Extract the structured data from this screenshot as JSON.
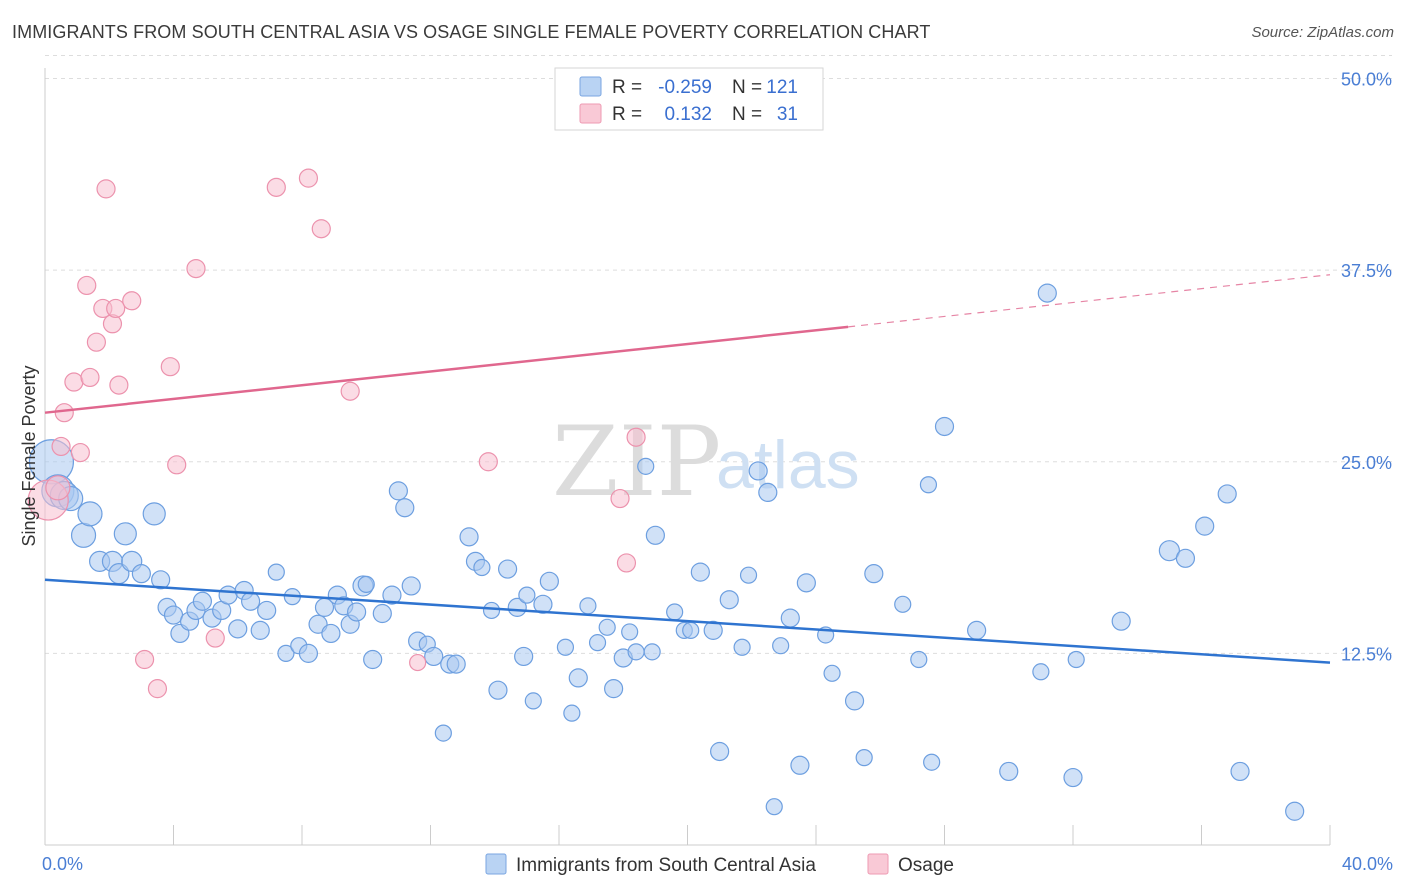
{
  "title": "IMMIGRANTS FROM SOUTH CENTRAL ASIA VS OSAGE SINGLE FEMALE POVERTY CORRELATION CHART",
  "source": "Source: ZipAtlas.com",
  "watermark": {
    "zip": "ZIP",
    "atlas": "atlas"
  },
  "colors": {
    "blue_fill": "#a9c8f0",
    "blue_stroke": "#6d9fe0",
    "blue_line": "#2f74d0",
    "pink_fill": "#f8bfcf",
    "pink_stroke": "#ec92ad",
    "pink_line": "#e0678e",
    "grid": "#dddddd",
    "axis_label": "#4a7ed4"
  },
  "legend": {
    "rows": [
      {
        "r_label": "R =",
        "r_value": "-0.259",
        "n_label": "N =",
        "n_value": "121"
      },
      {
        "r_label": "R =",
        "r_value": "0.132",
        "n_label": "N =",
        "n_value": "31"
      }
    ]
  },
  "bottom_legend": {
    "items": [
      {
        "label": "Immigrants from South Central Asia"
      },
      {
        "label": "Osage"
      }
    ]
  },
  "chart_data": {
    "type": "scatter",
    "title": "IMMIGRANTS FROM SOUTH CENTRAL ASIA VS OSAGE SINGLE FEMALE POVERTY CORRELATION CHART",
    "xlabel": "",
    "ylabel": "Single Female Poverty",
    "xlim": [
      0,
      40
    ],
    "ylim": [
      0,
      51.5
    ],
    "x_tick_labels": [
      {
        "value": 0,
        "label": "0.0%"
      },
      {
        "value": 40,
        "label": "40.0%"
      }
    ],
    "x_minor_ticks": [
      4,
      8,
      12,
      16,
      20,
      24,
      28,
      32,
      36
    ],
    "y_ticks": [
      {
        "value": 12.5,
        "label": "12.5%"
      },
      {
        "value": 25.0,
        "label": "25.0%"
      },
      {
        "value": 37.5,
        "label": "37.5%"
      },
      {
        "value": 50.0,
        "label": "50.0%"
      }
    ],
    "grid": true,
    "legend_position": "top-center",
    "series": [
      {
        "name": "Immigrants from South Central Asia",
        "color": "blue",
        "R": -0.259,
        "N": 121,
        "trend": {
          "x0": 0,
          "y0": 17.3,
          "x1": 40,
          "y1": 11.9
        },
        "points": [
          [
            0.2,
            25.0,
            22
          ],
          [
            0.4,
            23.1,
            16
          ],
          [
            0.6,
            22.8,
            14
          ],
          [
            0.8,
            22.6,
            12
          ],
          [
            1.2,
            20.2,
            12
          ],
          [
            1.4,
            21.6,
            12
          ],
          [
            1.7,
            18.5,
            10
          ],
          [
            2.1,
            18.5,
            10
          ],
          [
            2.3,
            17.7,
            10
          ],
          [
            2.5,
            20.3,
            11
          ],
          [
            2.7,
            18.5,
            10
          ],
          [
            3.0,
            17.7,
            9
          ],
          [
            3.4,
            21.6,
            11
          ],
          [
            3.6,
            17.3,
            9
          ],
          [
            3.8,
            15.5,
            9
          ],
          [
            4.0,
            15.0,
            9
          ],
          [
            4.2,
            13.8,
            9
          ],
          [
            4.5,
            14.6,
            9
          ],
          [
            4.7,
            15.3,
            9
          ],
          [
            4.9,
            15.9,
            9
          ],
          [
            5.2,
            14.8,
            9
          ],
          [
            5.5,
            15.3,
            9
          ],
          [
            5.7,
            16.3,
            9
          ],
          [
            6.0,
            14.1,
            9
          ],
          [
            6.2,
            16.6,
            9
          ],
          [
            6.4,
            15.9,
            9
          ],
          [
            6.7,
            14.0,
            9
          ],
          [
            6.9,
            15.3,
            9
          ],
          [
            7.2,
            17.8,
            8
          ],
          [
            7.5,
            12.5,
            8
          ],
          [
            7.7,
            16.2,
            8
          ],
          [
            7.9,
            13.0,
            8
          ],
          [
            8.2,
            12.5,
            9
          ],
          [
            8.5,
            14.4,
            9
          ],
          [
            8.7,
            15.5,
            9
          ],
          [
            8.9,
            13.8,
            9
          ],
          [
            9.1,
            16.3,
            9
          ],
          [
            9.3,
            15.6,
            9
          ],
          [
            9.5,
            14.4,
            9
          ],
          [
            9.7,
            15.2,
            9
          ],
          [
            9.9,
            16.9,
            10
          ],
          [
            10.0,
            17.0,
            8
          ],
          [
            10.2,
            12.1,
            9
          ],
          [
            10.5,
            15.1,
            9
          ],
          [
            10.8,
            16.3,
            9
          ],
          [
            11.0,
            23.1,
            9
          ],
          [
            11.2,
            22.0,
            9
          ],
          [
            11.4,
            16.9,
            9
          ],
          [
            11.6,
            13.3,
            9
          ],
          [
            11.9,
            13.1,
            8
          ],
          [
            12.1,
            12.3,
            9
          ],
          [
            12.4,
            7.3,
            8
          ],
          [
            12.6,
            11.8,
            9
          ],
          [
            12.8,
            11.8,
            9
          ],
          [
            13.2,
            20.1,
            9
          ],
          [
            13.4,
            18.5,
            9
          ],
          [
            13.6,
            18.1,
            8
          ],
          [
            13.9,
            15.3,
            8
          ],
          [
            14.1,
            10.1,
            9
          ],
          [
            14.4,
            18.0,
            9
          ],
          [
            14.7,
            15.5,
            9
          ],
          [
            14.9,
            12.3,
            9
          ],
          [
            15.2,
            9.4,
            8
          ],
          [
            15.5,
            15.7,
            9
          ],
          [
            15.0,
            16.3,
            8
          ],
          [
            15.7,
            17.2,
            9
          ],
          [
            16.2,
            12.9,
            8
          ],
          [
            16.4,
            8.6,
            8
          ],
          [
            16.6,
            10.9,
            9
          ],
          [
            16.9,
            15.6,
            8
          ],
          [
            17.2,
            13.2,
            8
          ],
          [
            17.5,
            14.2,
            8
          ],
          [
            17.7,
            10.2,
            9
          ],
          [
            18.0,
            12.2,
            9
          ],
          [
            18.2,
            13.9,
            8
          ],
          [
            18.4,
            12.6,
            8
          ],
          [
            18.7,
            24.7,
            8
          ],
          [
            19.0,
            20.2,
            9
          ],
          [
            18.9,
            12.6,
            8
          ],
          [
            19.6,
            15.2,
            8
          ],
          [
            19.9,
            14.0,
            8
          ],
          [
            20.1,
            14.0,
            8
          ],
          [
            20.4,
            17.8,
            9
          ],
          [
            20.8,
            14.0,
            9
          ],
          [
            21.0,
            6.1,
            9
          ],
          [
            21.3,
            16.0,
            9
          ],
          [
            21.7,
            12.9,
            8
          ],
          [
            21.9,
            17.6,
            8
          ],
          [
            22.2,
            24.4,
            9
          ],
          [
            22.5,
            23.0,
            9
          ],
          [
            22.7,
            2.5,
            8
          ],
          [
            22.9,
            13.0,
            8
          ],
          [
            23.2,
            14.8,
            9
          ],
          [
            23.5,
            5.2,
            9
          ],
          [
            23.7,
            17.1,
            9
          ],
          [
            24.3,
            13.7,
            8
          ],
          [
            24.5,
            11.2,
            8
          ],
          [
            25.2,
            9.4,
            9
          ],
          [
            25.5,
            5.7,
            8
          ],
          [
            25.8,
            17.7,
            9
          ],
          [
            26.7,
            15.7,
            8
          ],
          [
            27.2,
            12.1,
            8
          ],
          [
            27.5,
            23.5,
            8
          ],
          [
            27.6,
            5.4,
            8
          ],
          [
            28.0,
            27.3,
            9
          ],
          [
            29.0,
            14.0,
            9
          ],
          [
            30.0,
            4.8,
            9
          ],
          [
            31.0,
            11.3,
            8
          ],
          [
            31.2,
            36.0,
            9
          ],
          [
            32.1,
            12.1,
            8
          ],
          [
            32.0,
            4.4,
            9
          ],
          [
            33.5,
            14.6,
            9
          ],
          [
            35.0,
            19.2,
            10
          ],
          [
            35.5,
            18.7,
            9
          ],
          [
            36.1,
            20.8,
            9
          ],
          [
            36.8,
            22.9,
            9
          ],
          [
            37.2,
            4.8,
            9
          ],
          [
            38.9,
            2.2,
            9
          ]
        ]
      },
      {
        "name": "Osage",
        "color": "pink",
        "R": 0.132,
        "N": 31,
        "trend": {
          "x0": 0,
          "y0": 28.2,
          "x1": 25.0,
          "y1": 33.8,
          "dashed_to": {
            "x": 40,
            "y": 37.2
          }
        },
        "points": [
          [
            0.1,
            22.5,
            20
          ],
          [
            0.4,
            23.3,
            12
          ],
          [
            0.5,
            26.0,
            9
          ],
          [
            0.6,
            28.2,
            9
          ],
          [
            0.9,
            30.2,
            9
          ],
          [
            1.1,
            25.6,
            9
          ],
          [
            1.3,
            36.5,
            9
          ],
          [
            1.4,
            30.5,
            9
          ],
          [
            1.6,
            32.8,
            9
          ],
          [
            1.8,
            35.0,
            9
          ],
          [
            1.9,
            42.8,
            9
          ],
          [
            2.1,
            34.0,
            9
          ],
          [
            2.2,
            35.0,
            9
          ],
          [
            2.3,
            30.0,
            9
          ],
          [
            2.7,
            35.5,
            9
          ],
          [
            3.1,
            12.1,
            9
          ],
          [
            3.5,
            10.2,
            9
          ],
          [
            3.9,
            31.2,
            9
          ],
          [
            4.1,
            24.8,
            9
          ],
          [
            4.7,
            37.6,
            9
          ],
          [
            5.3,
            13.5,
            9
          ],
          [
            7.2,
            42.9,
            9
          ],
          [
            8.2,
            43.5,
            9
          ],
          [
            8.6,
            40.2,
            9
          ],
          [
            9.5,
            29.6,
            9
          ],
          [
            11.6,
            11.9,
            8
          ],
          [
            13.8,
            25.0,
            9
          ],
          [
            17.9,
            22.6,
            9
          ],
          [
            18.1,
            18.4,
            9
          ],
          [
            18.4,
            26.6,
            9
          ]
        ]
      }
    ]
  }
}
